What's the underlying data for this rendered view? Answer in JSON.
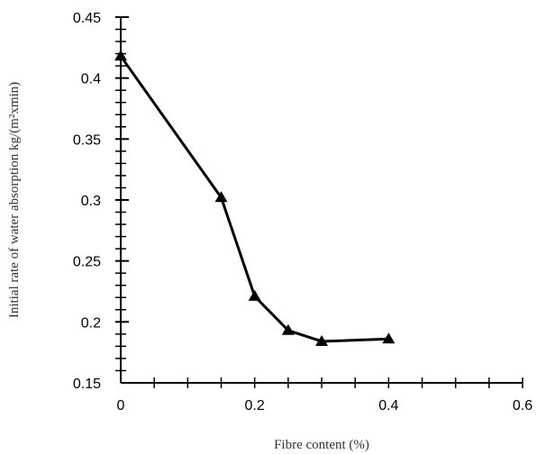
{
  "chart_data": {
    "type": "line",
    "xlabel": "Fibre content (%)",
    "ylabel": "Initial rate of water absorption kg/(m²xmin)",
    "xlim": [
      0,
      0.6
    ],
    "ylim": [
      0.15,
      0.45
    ],
    "x_ticks": [
      "0",
      "0.2",
      "0.4",
      "0.6"
    ],
    "y_ticks": [
      "0.15",
      "0.2",
      "0.25",
      "0.3",
      "0.35",
      "0.4",
      "0.45"
    ],
    "marker": "triangle",
    "line_color": "#000000",
    "grid": false,
    "series": [
      {
        "x": [
          0,
          0.15,
          0.2,
          0.25,
          0.3,
          0.4
        ],
        "y": [
          0.418,
          0.302,
          0.221,
          0.193,
          0.184,
          0.186
        ]
      }
    ]
  }
}
